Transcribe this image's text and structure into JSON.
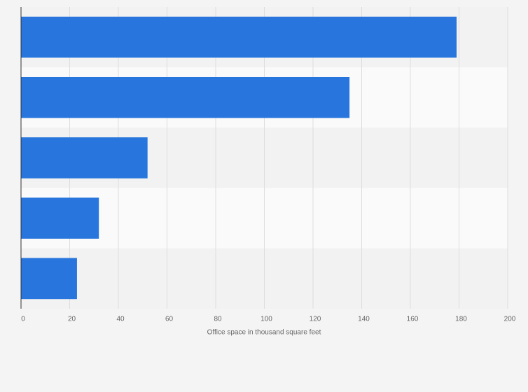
{
  "chart_data": {
    "type": "bar",
    "orientation": "horizontal",
    "x_label": "Office space in thousand square feet",
    "categories": [
      null,
      null,
      null,
      null,
      null
    ],
    "values": [
      179,
      135,
      52,
      32,
      23
    ],
    "color": "#2876dd",
    "xlim": [
      0,
      200
    ],
    "xticks": [
      0,
      20,
      40,
      60,
      80,
      100,
      120,
      140,
      160,
      180,
      200
    ],
    "grid": true
  }
}
